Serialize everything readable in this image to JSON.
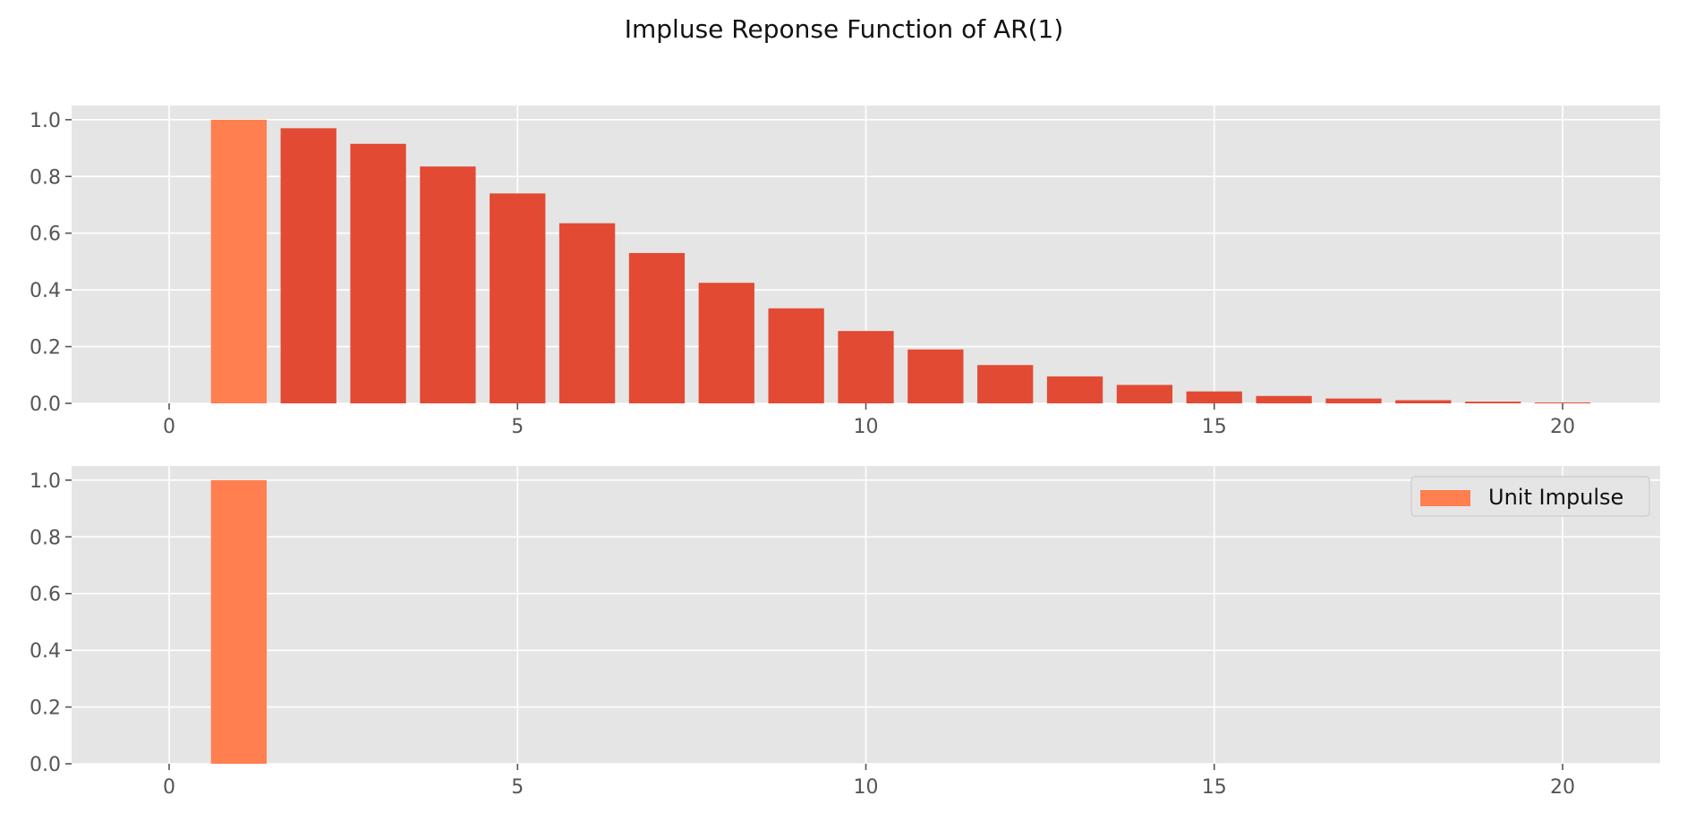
{
  "chart_data": [
    {
      "type": "bar",
      "title": "Impluse Reponse Function of AR(1)",
      "x": [
        1,
        2,
        3,
        4,
        5,
        6,
        7,
        8,
        9,
        10,
        11,
        12,
        13,
        14,
        15,
        16,
        17,
        18,
        19,
        20
      ],
      "series": [
        {
          "values": [
            1.0,
            0.97,
            0.915,
            0.835,
            0.74,
            0.635,
            0.53,
            0.425,
            0.335,
            0.255,
            0.19,
            0.135,
            0.095,
            0.065,
            0.042,
            0.026,
            0.017,
            0.011,
            0.006,
            0.003
          ]
        }
      ],
      "highlight_index": 0,
      "xlim": [
        -1.4,
        21.4
      ],
      "ylim": [
        0,
        1.05
      ],
      "xticks": [
        0,
        5,
        10,
        15,
        20
      ],
      "yticks": [
        0.0,
        0.2,
        0.4,
        0.6,
        0.8,
        1.0
      ],
      "grid": true
    },
    {
      "type": "bar",
      "x": [
        1
      ],
      "series": [
        {
          "name": "Unit Impulse",
          "values": [
            1.0
          ]
        }
      ],
      "xlim": [
        -1.4,
        21.4
      ],
      "ylim": [
        0,
        1.05
      ],
      "xticks": [
        0,
        5,
        10,
        15,
        20
      ],
      "yticks": [
        0.0,
        0.2,
        0.4,
        0.6,
        0.8,
        1.0
      ],
      "grid": true,
      "legend_position": "top-right"
    }
  ],
  "colors": {
    "bar": "#E24A33",
    "impulse": "#FF7F50",
    "axes_bg": "#E5E5E5",
    "grid": "#FFFFFF"
  },
  "ytick_labels": [
    "0.0",
    "0.2",
    "0.4",
    "0.6",
    "0.8",
    "1.0"
  ],
  "xtick_labels": [
    "0",
    "5",
    "10",
    "15",
    "20"
  ]
}
